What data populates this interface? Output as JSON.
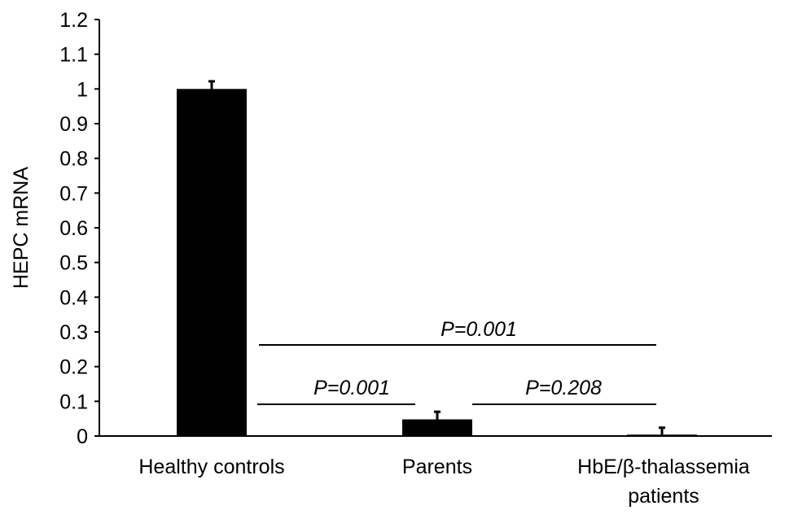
{
  "chart_data": {
    "type": "bar",
    "ylabel": "HEPC mRNA",
    "ylim": [
      0,
      1.2
    ],
    "yticks": [
      "0",
      "0.1",
      "0.2",
      "0.3",
      "0.4",
      "0.5",
      "0.6",
      "0.7",
      "0.8",
      "0.9",
      "1",
      "1.1",
      "1.2"
    ],
    "categories": [
      [
        "Healthy controls"
      ],
      [
        "Parents"
      ],
      [
        "HbE/β-thalassemia",
        "patients"
      ]
    ],
    "values": [
      1.0,
      0.048,
      0.004
    ],
    "errors": [
      0.022,
      0.022,
      0.02
    ],
    "bar_color": "#000000",
    "grid": false,
    "annotations": [
      {
        "label": "P=0.001",
        "from": 0,
        "to": 1
      },
      {
        "label": "P=0.208",
        "from": 1,
        "to": 2
      },
      {
        "label": "P=0.001",
        "from": 0,
        "to": 2
      }
    ]
  }
}
